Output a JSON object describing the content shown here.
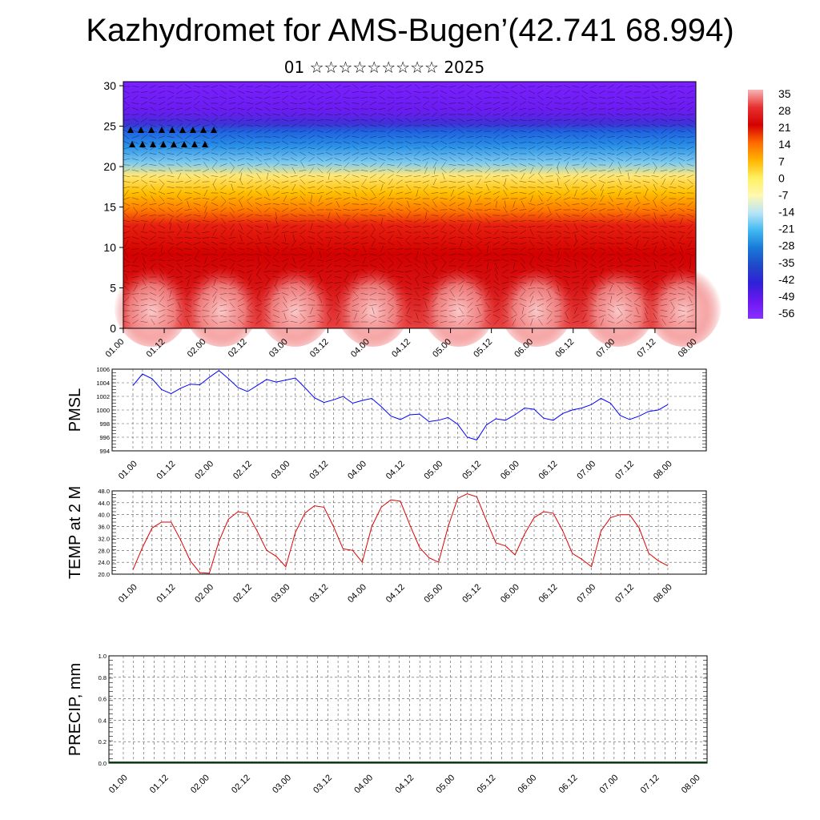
{
  "header": {
    "title": "Kazhydromet for AMS-Bugen’(42.741 68.994)",
    "subtitle": "01 ☆☆☆☆☆☆☆☆☆ 2025"
  },
  "time_labels": [
    "01.00",
    "01.12",
    "02.00",
    "02.12",
    "03.00",
    "03.12",
    "04.00",
    "04.12",
    "05.00",
    "05.12",
    "06.00",
    "06.12",
    "07.00",
    "07.12",
    "08.00"
  ],
  "colorbar": {
    "labels": [
      "35",
      "28",
      "21",
      "14",
      "7",
      "0",
      "-7",
      "-14",
      "-21",
      "-28",
      "-35",
      "-42",
      "-49",
      "-56"
    ],
    "colors": [
      "#f8b4b4",
      "#e83030",
      "#d40000",
      "#ff6a00",
      "#ffb400",
      "#fff060",
      "#fff8b0",
      "#b8e4f8",
      "#40b8f0",
      "#1878d8",
      "#2048c8",
      "#3020d8",
      "#6a18f0",
      "#8830ff"
    ]
  },
  "chart_data": [
    {
      "type": "heatmap",
      "name": "Temperature cross-section with wind vectors",
      "x_labels": [
        "01.00",
        "01.12",
        "02.00",
        "02.12",
        "03.00",
        "03.12",
        "04.00",
        "04.12",
        "05.00",
        "05.12",
        "06.00",
        "06.12",
        "07.00",
        "07.12",
        "08.00"
      ],
      "y_ticks": [
        0,
        5,
        10,
        15,
        20,
        25,
        30
      ],
      "ylim": [
        0,
        30.5
      ],
      "colorbar_range": [
        -56,
        35
      ],
      "note_levels": {
        "surface_warm_max": 35,
        "top_cold_min": -56
      }
    },
    {
      "type": "line",
      "ylabel": "PMSL",
      "ylim": [
        994,
        1006
      ],
      "y_ticks": [
        994,
        996,
        998,
        1000,
        1002,
        1004,
        1006
      ],
      "x_labels": [
        "01.00",
        "01.12",
        "02.00",
        "02.12",
        "03.00",
        "03.12",
        "04.00",
        "04.12",
        "05.00",
        "05.12",
        "06.00",
        "06.12",
        "07.00",
        "07.12",
        "08.00"
      ],
      "series_color": "#0000ff",
      "values": [
        1003.6,
        1005.3,
        1004.6,
        1003.0,
        1002.4,
        1003.2,
        1003.8,
        1003.7,
        1004.8,
        1005.8,
        1004.6,
        1003.3,
        1002.7,
        1003.6,
        1004.5,
        1004.1,
        1004.4,
        1004.7,
        1003.3,
        1001.8,
        1001.1,
        1001.5,
        1002.0,
        1001.0,
        1001.4,
        1001.7,
        1000.5,
        999.1,
        998.6,
        999.3,
        999.4,
        998.3,
        998.5,
        998.9,
        997.9,
        996.0,
        995.6,
        997.8,
        998.7,
        998.5,
        999.3,
        1000.3,
        1000.1,
        998.8,
        998.5,
        999.5,
        1000.0,
        1000.3,
        1000.8,
        1001.7,
        1001.0,
        999.2,
        998.6,
        999.1,
        999.8,
        1000.0,
        1000.8
      ]
    },
    {
      "type": "line",
      "ylabel": "TEMP at 2 M",
      "ylim": [
        20,
        48
      ],
      "y_ticks": [
        20.0,
        24.0,
        28.0,
        32.0,
        36.0,
        40.0,
        44.0,
        48.0
      ],
      "x_labels": [
        "01.00",
        "01.12",
        "02.00",
        "02.12",
        "03.00",
        "03.12",
        "04.00",
        "04.12",
        "05.00",
        "05.12",
        "06.00",
        "06.12",
        "07.00",
        "07.12",
        "08.00"
      ],
      "series_color": "#e00000",
      "values": [
        21.5,
        29.0,
        35.5,
        37.5,
        37.5,
        31.5,
        24.5,
        20.5,
        20.3,
        31.0,
        38.5,
        41.0,
        40.5,
        34.5,
        28.0,
        26.0,
        22.5,
        34.0,
        40.5,
        43.0,
        42.5,
        36.0,
        28.5,
        28.0,
        24.0,
        36.0,
        42.5,
        45.0,
        44.5,
        36.5,
        29.0,
        25.5,
        24.0,
        36.0,
        45.5,
        47.0,
        46.0,
        38.0,
        30.5,
        29.5,
        26.5,
        33.5,
        39.0,
        41.0,
        40.5,
        34.5,
        27.0,
        25.0,
        22.5,
        34.5,
        39.0,
        40.0,
        40.0,
        35.5,
        27.0,
        24.5,
        22.8
      ]
    },
    {
      "type": "bar",
      "ylabel": "PRECIP, mm",
      "ylim": [
        0,
        1
      ],
      "y_ticks": [
        0.0,
        0.2,
        0.4,
        0.6,
        0.8,
        1.0
      ],
      "x_labels": [
        "01.00",
        "01.12",
        "02.00",
        "02.12",
        "03.00",
        "03.12",
        "04.00",
        "04.12",
        "05.00",
        "05.12",
        "06.00",
        "06.12",
        "07.00",
        "07.12",
        "08.00"
      ],
      "series_color": "#0a4010",
      "values": [
        0,
        0,
        0,
        0,
        0,
        0,
        0,
        0,
        0,
        0,
        0,
        0,
        0,
        0,
        0,
        0,
        0,
        0,
        0,
        0,
        0,
        0,
        0,
        0,
        0,
        0,
        0,
        0,
        0,
        0,
        0,
        0,
        0,
        0,
        0,
        0,
        0,
        0,
        0,
        0,
        0,
        0,
        0,
        0,
        0,
        0,
        0,
        0,
        0,
        0,
        0,
        0,
        0,
        0,
        0,
        0,
        0
      ]
    }
  ]
}
